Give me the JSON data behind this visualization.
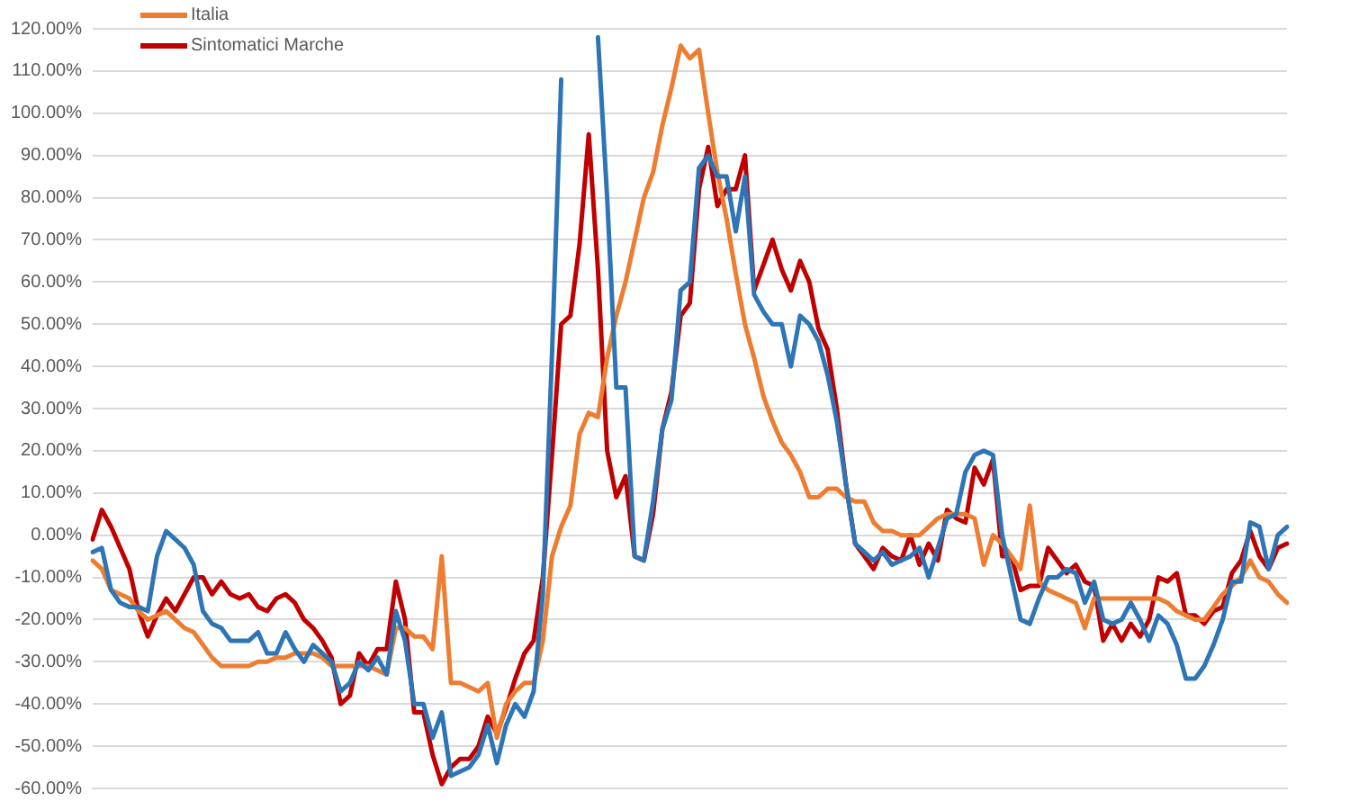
{
  "chart_data": {
    "type": "line",
    "categories": [
      null,
      null,
      null,
      null,
      null,
      null,
      null,
      null,
      null,
      null,
      null,
      null,
      null,
      null,
      null,
      null,
      null,
      null,
      null,
      null,
      null,
      null,
      null,
      null,
      null,
      null,
      null,
      null,
      null,
      null,
      null,
      null,
      null,
      null,
      null,
      null,
      null,
      null,
      null,
      null,
      null,
      null,
      null,
      null,
      null,
      null,
      null,
      null,
      null,
      null,
      null,
      null,
      null,
      null,
      null,
      null,
      null,
      null,
      null,
      null,
      null,
      null,
      null,
      null,
      null,
      null,
      null,
      null,
      null,
      null,
      null,
      null,
      null,
      null,
      null,
      null,
      null,
      null,
      null,
      null,
      null,
      null,
      null,
      null,
      null,
      null,
      null,
      null,
      null,
      null,
      null,
      null,
      null,
      null,
      null,
      null,
      null,
      null,
      null,
      null,
      null,
      null,
      null,
      null,
      null,
      null,
      null,
      null,
      null,
      null,
      null,
      null,
      null,
      null,
      null,
      null,
      null,
      null,
      null,
      null,
      null,
      null,
      null,
      null,
      null,
      null,
      null,
      null,
      null,
      null,
      null
    ],
    "series": [
      {
        "color": "#2e75b6",
        "values": [
          -4,
          -3,
          -13,
          -16,
          -17,
          -17,
          -18,
          -5,
          1,
          -1,
          -3,
          -7,
          -18,
          -21,
          -22,
          -25,
          -25,
          -25,
          -23,
          -28,
          -28,
          -23,
          -27,
          -30,
          -26,
          -28,
          -30,
          -37,
          -35,
          -30,
          -32,
          -29,
          -33,
          -18,
          -25,
          -40,
          -40,
          -48,
          -42,
          -57,
          -56,
          -55,
          -52,
          -45,
          -54,
          -45,
          -40,
          -43,
          -37,
          -14,
          43,
          108,
          null,
          null,
          null,
          118,
          80,
          35,
          35,
          -5,
          -6,
          8,
          25,
          32,
          58,
          60,
          87,
          90,
          85,
          85,
          72,
          85,
          57,
          53,
          50,
          50,
          40,
          52,
          50,
          46,
          38,
          27,
          12,
          -2,
          -4,
          -6,
          -4,
          -7,
          -6,
          -5,
          -3,
          -10,
          -3,
          4,
          5,
          15,
          19,
          20,
          19,
          0,
          -10,
          -20,
          -21,
          -15,
          -10,
          -10,
          -8,
          -9,
          -16,
          -11,
          -20,
          -21,
          -20,
          -16,
          -20,
          -25,
          -19,
          -21,
          -26,
          -34,
          -34,
          -31,
          -26,
          -20,
          -11,
          -11,
          3,
          2,
          -8,
          0,
          2
        ]
      },
      {
        "name": "Italia",
        "color": "#ed7d31",
        "values": [
          -6,
          -8,
          -13,
          -14,
          -15,
          -18,
          -20,
          -19,
          -18,
          -20,
          -22,
          -23,
          -26,
          -29,
          -31,
          -31,
          -31,
          -31,
          -30,
          -30,
          -29,
          -29,
          -28,
          -28,
          -28,
          -29,
          -31,
          -31,
          -31,
          -31,
          -31,
          -32,
          -33,
          -22,
          -22,
          -24,
          -24,
          -27,
          -5,
          -35,
          -35,
          -36,
          -37,
          -35,
          -48,
          -40,
          -37,
          -35,
          -35,
          -25,
          -5,
          2,
          7,
          24,
          29,
          28,
          42,
          52,
          60,
          70,
          80,
          86,
          97,
          106,
          116,
          113,
          115,
          100,
          86,
          75,
          62,
          50,
          42,
          33,
          27,
          22,
          19,
          15,
          9,
          9,
          11,
          11,
          9,
          8,
          8,
          3,
          1,
          1,
          0,
          0,
          0,
          2,
          4,
          5,
          5,
          5,
          4,
          -7,
          0,
          -2,
          -5,
          -8,
          7,
          -11,
          -13,
          -14,
          -15,
          -16,
          -22,
          -15,
          -15,
          -15,
          -15,
          -15,
          -15,
          -15,
          -15,
          -16,
          -18,
          -19,
          -20,
          -20,
          -17,
          -14,
          -12,
          -10,
          -6,
          -10,
          -11,
          -14,
          -16
        ]
      },
      {
        "name": "Sintomatici Marche",
        "color": "#c00000",
        "values": [
          -1,
          6,
          2,
          -3,
          -8,
          -18,
          -24,
          -19,
          -15,
          -18,
          -14,
          -10,
          -10,
          -14,
          -11,
          -14,
          -15,
          -14,
          -17,
          -18,
          -15,
          -14,
          -16,
          -20,
          -22,
          -25,
          -29,
          -40,
          -38,
          -28,
          -31,
          -27,
          -27,
          -11,
          -20,
          -42,
          -42,
          -52,
          -59,
          -55,
          -53,
          -53,
          -50,
          -43,
          -47,
          -41,
          -34,
          -28,
          -25,
          -10,
          19,
          50,
          52,
          69,
          95,
          63,
          20,
          9,
          14,
          -5,
          -6,
          5,
          25,
          34,
          52,
          55,
          82,
          92,
          78,
          82,
          82,
          90,
          58,
          64,
          70,
          63,
          58,
          65,
          60,
          49,
          44,
          30,
          12,
          -2,
          -5,
          -8,
          -3,
          -5,
          -6,
          0,
          -7,
          -2,
          -6,
          6,
          4,
          3,
          16,
          12,
          18,
          -5,
          -5,
          -13,
          -12,
          -12,
          -3,
          -6,
          -9,
          -7,
          -11,
          -12,
          -25,
          -21,
          -25,
          -21,
          -24,
          -20,
          -10,
          -11,
          -9,
          -19,
          -19,
          -21,
          -18,
          -17,
          -9,
          -6,
          1,
          -5,
          -8,
          -3,
          -2
        ]
      }
    ],
    "ylim": [
      -60,
      120
    ],
    "yticks": [
      {
        "value": -60,
        "label": "-60.00%"
      },
      {
        "value": -50,
        "label": "-50.00%"
      },
      {
        "value": -40,
        "label": "-40.00%"
      },
      {
        "value": -30,
        "label": "-30.00%"
      },
      {
        "value": -20,
        "label": "-20.00%"
      },
      {
        "value": -10,
        "label": "-10.00%"
      },
      {
        "value": 0,
        "label": "0.00%"
      },
      {
        "value": 10,
        "label": "10.00%"
      },
      {
        "value": 20,
        "label": "20.00%"
      },
      {
        "value": 30,
        "label": "30.00%"
      },
      {
        "value": 40,
        "label": "40.00%"
      },
      {
        "value": 50,
        "label": "50.00%"
      },
      {
        "value": 60,
        "label": "60.00%"
      },
      {
        "value": 70,
        "label": "70.00%"
      },
      {
        "value": 80,
        "label": "80.00%"
      },
      {
        "value": 90,
        "label": "90.00%"
      },
      {
        "value": 100,
        "label": "100.00%"
      },
      {
        "value": 110,
        "label": "110.00%"
      },
      {
        "value": 120,
        "label": "120.00%"
      }
    ],
    "grid": "y",
    "legend": "top left",
    "tick_labels": "y",
    "marker": "none",
    "line_style": "solid"
  }
}
